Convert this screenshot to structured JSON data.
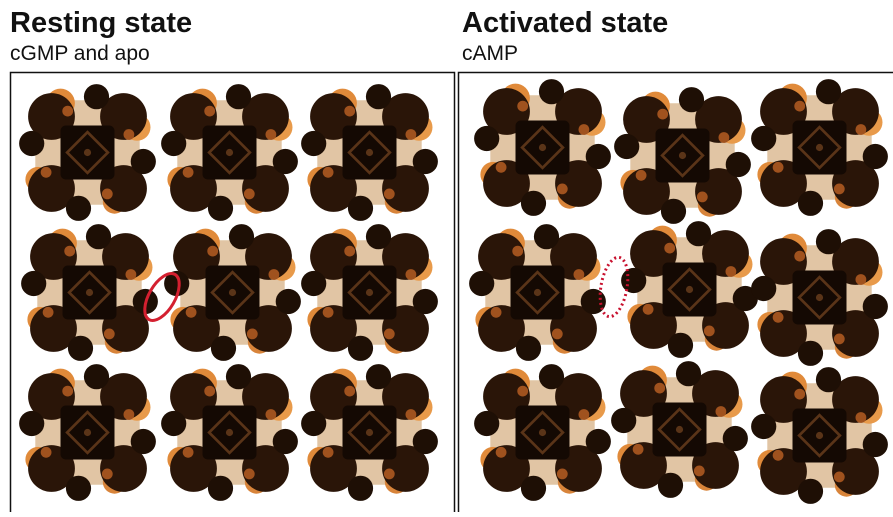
{
  "panels": [
    {
      "title": "Resting state",
      "subtitle": "cGMP and apo"
    },
    {
      "title": "Activated state",
      "subtitle": "cAMP"
    }
  ]
}
